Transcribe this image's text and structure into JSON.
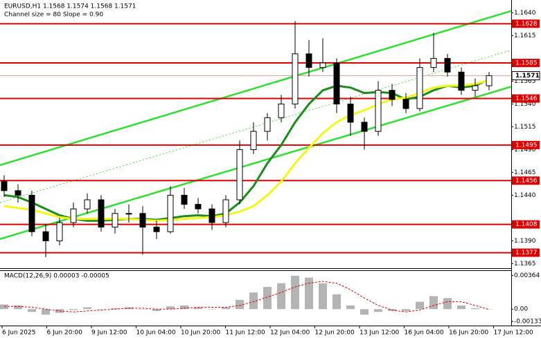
{
  "chart_data": {
    "type": "candlestick",
    "title": "EURUSD,H1  1.1568 1.1574 1.1568 1.1571",
    "subtitle": "Channel size = 80 Slope = 0.90",
    "x_labels": [
      "6 Jun 2025",
      "6 Jun 20:00",
      "9 Jun 12:00",
      "10 Jun 04:00",
      "10 Jun 20:00",
      "11 Jun 12:00",
      "12 Jun 04:00",
      "12 Jun 20:00",
      "13 Jun 12:00",
      "16 Jun 04:00",
      "16 Jun 20:00",
      "17 Jun 12:00"
    ],
    "open": [
      1.1455,
      1.1445,
      1.144,
      1.14,
      1.139,
      1.141,
      1.1425,
      1.1435,
      1.1405,
      1.142,
      1.142,
      1.1405,
      1.14,
      1.144,
      1.143,
      1.1425,
      1.141,
      1.1435,
      1.149,
      1.151,
      1.1525,
      1.154,
      1.1595,
      1.158,
      1.1585,
      1.154,
      1.152,
      1.151,
      1.1555,
      1.1545,
      1.1535,
      1.158,
      1.159,
      1.1575,
      1.1555,
      1.156
    ],
    "high": [
      1.1462,
      1.1452,
      1.1445,
      1.1408,
      1.1415,
      1.1432,
      1.1442,
      1.144,
      1.1425,
      1.143,
      1.1428,
      1.1412,
      1.145,
      1.1448,
      1.1437,
      1.143,
      1.144,
      1.15,
      1.152,
      1.153,
      1.155,
      1.1631,
      1.161,
      1.1612,
      1.159,
      1.1548,
      1.1525,
      1.1565,
      1.1562,
      1.1552,
      1.159,
      1.1618,
      1.1595,
      1.158,
      1.1568,
      1.1575
    ],
    "low": [
      1.1438,
      1.1432,
      1.1395,
      1.1372,
      1.1385,
      1.1405,
      1.142,
      1.14,
      1.1398,
      1.141,
      1.1375,
      1.1392,
      1.1398,
      1.1425,
      1.142,
      1.1402,
      1.1405,
      1.143,
      1.1485,
      1.15,
      1.152,
      1.1535,
      1.157,
      1.1575,
      1.153,
      1.1505,
      1.149,
      1.1505,
      1.1538,
      1.153,
      1.1532,
      1.1575,
      1.157,
      1.155,
      1.1548,
      1.1555
    ],
    "close": [
      1.1445,
      1.144,
      1.14,
      1.139,
      1.141,
      1.1425,
      1.1435,
      1.1405,
      1.142,
      1.142,
      1.1405,
      1.14,
      1.144,
      1.143,
      1.1425,
      1.141,
      1.1435,
      1.149,
      1.151,
      1.1525,
      1.154,
      1.1595,
      1.158,
      1.1585,
      1.154,
      1.152,
      1.151,
      1.1555,
      1.1545,
      1.1535,
      1.158,
      1.159,
      1.1575,
      1.1555,
      1.156,
      1.1571
    ],
    "moving_averages": [
      {
        "color": "#1a8c1a",
        "values": [
          1.144,
          1.1438,
          1.1432,
          1.1425,
          1.1418,
          1.1414,
          1.1412,
          1.1412,
          1.1413,
          1.1414,
          1.1414,
          1.1413,
          1.1415,
          1.1417,
          1.1418,
          1.1417,
          1.142,
          1.1432,
          1.145,
          1.1475,
          1.1495,
          1.152,
          1.154,
          1.1555,
          1.156,
          1.1558,
          1.1552,
          1.1553,
          1.1552,
          1.1545,
          1.1548,
          1.1555,
          1.156,
          1.1558,
          1.156,
          1.1567
        ]
      },
      {
        "color": "#f5f51a",
        "values": [
          1.1428,
          1.1426,
          1.1424,
          1.142,
          1.1416,
          1.1414,
          1.1414,
          1.1414,
          1.1414,
          1.1414,
          1.1413,
          1.1412,
          1.1413,
          1.1414,
          1.1415,
          1.1416,
          1.1418,
          1.1422,
          1.1428,
          1.144,
          1.1455,
          1.1475,
          1.1492,
          1.1508,
          1.152,
          1.1528,
          1.1533,
          1.154,
          1.1545,
          1.1547,
          1.1552,
          1.1558,
          1.156,
          1.156,
          1.1562,
          1.1566
        ]
      }
    ],
    "channel": {
      "color": "#2ee02e",
      "upper": [
        1.1473,
        1.1642
      ],
      "middle": [
        1.1432,
        1.1599
      ],
      "lower": [
        1.1392,
        1.1559
      ]
    },
    "levels": [
      1.1628,
      1.1585,
      1.1546,
      1.1495,
      1.1456,
      1.1408,
      1.1377
    ],
    "level_color": "#e00000",
    "current_price": 1.1571,
    "ylim": [
      1.136,
      1.1654
    ],
    "yticks": [
      {
        "value": 1.164,
        "label": "1.1640"
      },
      1.1615,
      1.1565,
      {
        "value": 1.154,
        "label": "1.1540"
      },
      1.1515,
      {
        "value": 1.149,
        "label": "1.1490"
      },
      1.1465,
      {
        "value": 1.144,
        "label": "1.1440"
      },
      {
        "value": 1.139,
        "label": "1.1390"
      },
      1.1365
    ],
    "macd": {
      "title": "MACD(12,26,9) 0.00003 -0.00005",
      "histogram": [
        0.0005,
        0.0004,
        -0.0003,
        -0.0006,
        -0.0004,
        -0.0001,
        0.0002,
        0.0,
        0.0001,
        0.0002,
        0.0,
        -0.0002,
        0.0003,
        0.0004,
        0.0002,
        0.0,
        0.0002,
        0.001,
        0.0018,
        0.0024,
        0.0028,
        0.0036,
        0.0034,
        0.0028,
        0.0016,
        0.0004,
        -0.0006,
        -0.0003,
        -0.0002,
        -0.0002,
        0.0008,
        0.0014,
        0.0012,
        0.0004,
        0.0001,
        3e-05
      ],
      "signal": [
        0.0003,
        0.0003,
        0.0002,
        0.0,
        -0.0002,
        -0.0003,
        -0.0002,
        -0.0001,
        0.0,
        0.0001,
        0.0001,
        0.0,
        0.0,
        0.0001,
        0.0002,
        0.0002,
        0.0002,
        0.0004,
        0.0008,
        0.0013,
        0.0018,
        0.0024,
        0.0028,
        0.003,
        0.0028,
        0.0021,
        0.0012,
        0.0004,
        -0.0001,
        -0.0003,
        -0.0001,
        0.0004,
        0.0008,
        0.0008,
        0.0004,
        -5e-05
      ],
      "histogram_color": "#b4b4b4",
      "signal_color": "#e00000",
      "ylim": [
        -0.0017,
        0.0042
      ],
      "yticks": [
        0.00364,
        {
          "value": 0,
          "label": "0.00"
        },
        -0.00133
      ]
    }
  }
}
